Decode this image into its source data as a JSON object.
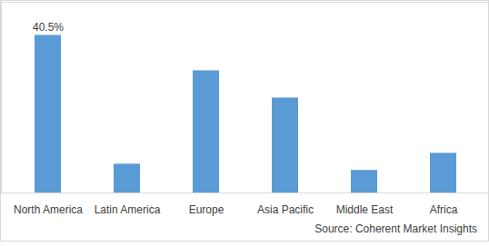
{
  "chart_data": {
    "type": "bar",
    "categories": [
      "North America",
      "Latin America",
      "Europe",
      "Asia Pacific",
      "Middle East",
      "Africa"
    ],
    "values": [
      40.5,
      7.4,
      31.4,
      24.4,
      5.8,
      10.2
    ],
    "value_labels": [
      "40.5%",
      null,
      null,
      null,
      null,
      null
    ],
    "data_labels": true,
    "color": "#5b9bd5",
    "ylim": [
      0,
      49
    ],
    "grid": false,
    "tick_labels": "x",
    "caption": "Source: Coherent Market Insights"
  }
}
